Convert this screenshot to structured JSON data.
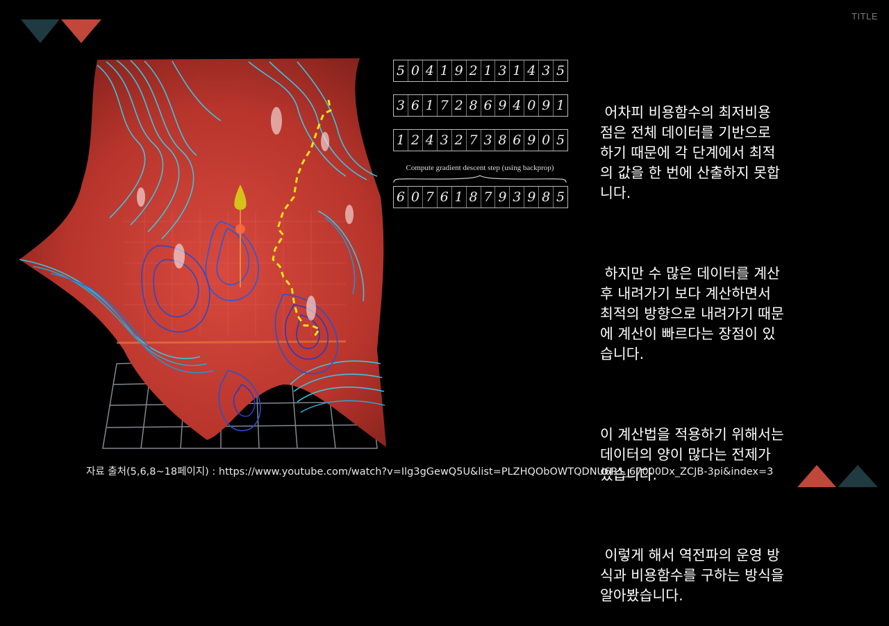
{
  "header": {
    "title_tag": "TITLE"
  },
  "digits": {
    "rows": [
      [
        "5",
        "0",
        "4",
        "1",
        "9",
        "2",
        "1",
        "3",
        "1",
        "4",
        "3",
        "5"
      ],
      [
        "3",
        "6",
        "1",
        "7",
        "2",
        "8",
        "6",
        "9",
        "4",
        "0",
        "9",
        "1"
      ],
      [
        "1",
        "2",
        "4",
        "3",
        "2",
        "7",
        "3",
        "8",
        "6",
        "9",
        "0",
        "5"
      ]
    ],
    "caption": "Compute gradient descent step (using backprop)",
    "result_row": [
      "6",
      "0",
      "7",
      "6",
      "1",
      "8",
      "7",
      "9",
      "3",
      "9",
      "8",
      "5"
    ]
  },
  "body": {
    "paragraphs": [
      " 어차피 비용함수의 최저비용\n점은 전체 데이터를 기반으로\n하기 때문에 각 단계에서 최적\n의 값을 한 번에 산출하지 못합\n니다.",
      " 하지만 수 많은 데이터를 계산\n후 내려가기 보다 계산하면서\n최적의 방향으로 내려가기 때문\n에 계산이 빠르다는 장점이 있\n습니다.",
      "이 계산법을 적용하기 위해서는\n데이터의 양이 많다는 전제가\n있습니다.",
      " 이렇게 해서 역전파의 운영 방\n식과 비용함수를 구하는 방식을\n알아봤습니다."
    ]
  },
  "footer": {
    "source": "자료 출처(5,6,8~18페이지) : https://www.youtube.com/watch?v=Ilg3gGewQ5U&list=PLZHQObOWTQDNU6R1_67000Dx_ZCJB-3pi&index=3"
  },
  "colors": {
    "accent_red": "#c0473a",
    "accent_teal": "#1f3a40",
    "surface_red": "#b8352c",
    "path_yellow": "#f5e21a"
  }
}
